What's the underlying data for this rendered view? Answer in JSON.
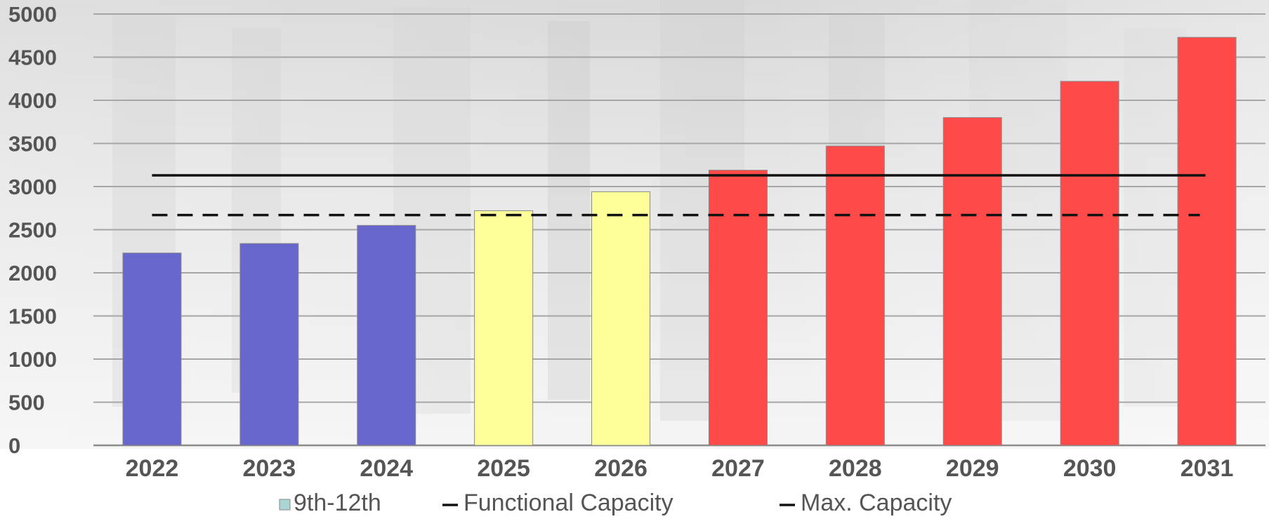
{
  "chart_data": {
    "type": "bar",
    "title": "",
    "xlabel": "",
    "ylabel": "",
    "categories": [
      "2022",
      "2023",
      "2024",
      "2025",
      "2026",
      "2027",
      "2028",
      "2029",
      "2030",
      "2031"
    ],
    "values": [
      2230,
      2340,
      2550,
      2720,
      2940,
      3190,
      3470,
      3800,
      4220,
      4730
    ],
    "bar_colors": [
      "#6666cc",
      "#6666cc",
      "#6666cc",
      "#ffff99",
      "#ffff99",
      "#ff4a4a",
      "#ff4a4a",
      "#ff4a4a",
      "#ff4a4a",
      "#ff4a4a"
    ],
    "ylim": [
      0,
      5000
    ],
    "yticks": [
      "0",
      "500",
      "1000",
      "1500",
      "2000",
      "2500",
      "3000",
      "3500",
      "4000",
      "4500",
      "5000"
    ],
    "grid": true,
    "reference_lines": [
      {
        "name": "Functional Capacity",
        "value": 2670,
        "style": "dashed",
        "color": "#111111"
      },
      {
        "name": "Max. Capacity",
        "value": 3130,
        "style": "solid",
        "color": "#111111"
      }
    ],
    "legend": {
      "placement": "bottom",
      "items": [
        {
          "label": "9th-12th",
          "color": "#a9d6d4",
          "kind": "box"
        },
        {
          "label": "Functional Capacity",
          "color": "#111111",
          "kind": "line"
        },
        {
          "label": "Max. Capacity",
          "color": "#111111",
          "kind": "line"
        }
      ]
    }
  }
}
